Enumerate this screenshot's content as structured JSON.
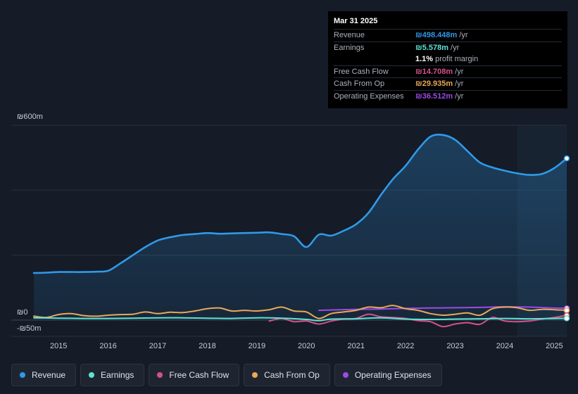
{
  "tooltip": {
    "date": "Mar 31 2025",
    "rows": [
      {
        "label": "Revenue",
        "value": "₪498.448m",
        "unit": "/yr",
        "color": "#2f9ae8"
      },
      {
        "label": "Earnings",
        "value": "₪5.578m",
        "unit": "/yr",
        "color": "#5fe3d3"
      },
      {
        "label": "",
        "value": "1.1%",
        "unit": "profit margin",
        "color": "#ffffff"
      },
      {
        "label": "Free Cash Flow",
        "value": "₪14.708m",
        "unit": "/yr",
        "color": "#d6518a"
      },
      {
        "label": "Cash From Op",
        "value": "₪29.935m",
        "unit": "/yr",
        "color": "#e8a95a"
      },
      {
        "label": "Operating Expenses",
        "value": "₪36.512m",
        "unit": "/yr",
        "color": "#9b4be6"
      }
    ]
  },
  "legend": [
    {
      "label": "Revenue",
      "color": "#2f9ae8"
    },
    {
      "label": "Earnings",
      "color": "#5fe3d3"
    },
    {
      "label": "Free Cash Flow",
      "color": "#d6518a"
    },
    {
      "label": "Cash From Op",
      "color": "#e8a95a"
    },
    {
      "label": "Operating Expenses",
      "color": "#9b4be6"
    }
  ],
  "chart_data": {
    "type": "line",
    "title": "",
    "xlabel": "",
    "ylabel": "",
    "xlim": [
      2014.5,
      2025.25
    ],
    "ylim": [
      -50,
      600
    ],
    "y_tick_labels": [
      {
        "value": 600,
        "label": "₪600m"
      },
      {
        "value": 0,
        "label": "₪0"
      },
      {
        "value": -50,
        "label": "-₪50m"
      }
    ],
    "x_ticks": [
      {
        "value": 2015,
        "label": "2015"
      },
      {
        "value": 2016,
        "label": "2016"
      },
      {
        "value": 2017,
        "label": "2017"
      },
      {
        "value": 2018,
        "label": "2018"
      },
      {
        "value": 2019,
        "label": "2019"
      },
      {
        "value": 2020,
        "label": "2020"
      },
      {
        "value": 2021,
        "label": "2021"
      },
      {
        "value": 2022,
        "label": "2022"
      },
      {
        "value": 2023,
        "label": "2023"
      },
      {
        "value": 2024,
        "label": "2024"
      },
      {
        "value": 2025,
        "label": "2025"
      }
    ],
    "highlight_from": 2024.25,
    "series": [
      {
        "name": "Revenue",
        "color": "#2f9ae8",
        "fill": true,
        "points": [
          [
            2014.5,
            145
          ],
          [
            2014.75,
            146
          ],
          [
            2015,
            148
          ],
          [
            2015.25,
            148
          ],
          [
            2015.5,
            148
          ],
          [
            2015.75,
            149
          ],
          [
            2016,
            152
          ],
          [
            2016.25,
            175
          ],
          [
            2016.5,
            200
          ],
          [
            2016.75,
            225
          ],
          [
            2017,
            245
          ],
          [
            2017.25,
            255
          ],
          [
            2017.5,
            262
          ],
          [
            2017.75,
            265
          ],
          [
            2018,
            268
          ],
          [
            2018.25,
            266
          ],
          [
            2018.5,
            267
          ],
          [
            2018.75,
            268
          ],
          [
            2019,
            269
          ],
          [
            2019.25,
            270
          ],
          [
            2019.5,
            265
          ],
          [
            2019.75,
            258
          ],
          [
            2020,
            225
          ],
          [
            2020.25,
            263
          ],
          [
            2020.5,
            260
          ],
          [
            2020.75,
            275
          ],
          [
            2021,
            295
          ],
          [
            2021.25,
            330
          ],
          [
            2021.5,
            385
          ],
          [
            2021.75,
            435
          ],
          [
            2022,
            475
          ],
          [
            2022.25,
            525
          ],
          [
            2022.5,
            565
          ],
          [
            2022.75,
            570
          ],
          [
            2023,
            555
          ],
          [
            2023.25,
            520
          ],
          [
            2023.5,
            485
          ],
          [
            2023.75,
            470
          ],
          [
            2024,
            460
          ],
          [
            2024.25,
            452
          ],
          [
            2024.5,
            447
          ],
          [
            2024.75,
            450
          ],
          [
            2025,
            468
          ],
          [
            2025.25,
            498
          ]
        ]
      },
      {
        "name": "Earnings",
        "color": "#5fe3d3",
        "fill": false,
        "points": [
          [
            2014.5,
            7
          ],
          [
            2015,
            6
          ],
          [
            2015.5,
            5
          ],
          [
            2016,
            5
          ],
          [
            2016.5,
            6
          ],
          [
            2017,
            7
          ],
          [
            2017.5,
            7
          ],
          [
            2018,
            6
          ],
          [
            2018.5,
            5
          ],
          [
            2019,
            7
          ],
          [
            2019.5,
            6
          ],
          [
            2020,
            2
          ],
          [
            2020.25,
            -2
          ],
          [
            2020.5,
            3
          ],
          [
            2021,
            4
          ],
          [
            2021.5,
            7
          ],
          [
            2022,
            3
          ],
          [
            2022.5,
            2
          ],
          [
            2023,
            3
          ],
          [
            2023.5,
            4
          ],
          [
            2024,
            5
          ],
          [
            2024.5,
            4
          ],
          [
            2025,
            5
          ],
          [
            2025.25,
            5.5
          ]
        ]
      },
      {
        "name": "Free Cash Flow",
        "color": "#d6518a",
        "fill": false,
        "points": [
          [
            2019.25,
            -3
          ],
          [
            2019.5,
            5
          ],
          [
            2019.75,
            -5
          ],
          [
            2020,
            -3
          ],
          [
            2020.25,
            -12
          ],
          [
            2020.5,
            -3
          ],
          [
            2020.75,
            3
          ],
          [
            2021,
            5
          ],
          [
            2021.25,
            18
          ],
          [
            2021.5,
            10
          ],
          [
            2021.75,
            8
          ],
          [
            2022,
            5
          ],
          [
            2022.25,
            -2
          ],
          [
            2022.5,
            -5
          ],
          [
            2022.75,
            -20
          ],
          [
            2023,
            -12
          ],
          [
            2023.25,
            -8
          ],
          [
            2023.5,
            -13
          ],
          [
            2023.75,
            8
          ],
          [
            2024,
            -3
          ],
          [
            2024.25,
            -5
          ],
          [
            2024.5,
            -3
          ],
          [
            2024.75,
            3
          ],
          [
            2025,
            8
          ],
          [
            2025.25,
            14.7
          ]
        ]
      },
      {
        "name": "Cash From Op",
        "color": "#e8a95a",
        "fill": false,
        "points": [
          [
            2014.5,
            12
          ],
          [
            2014.75,
            8
          ],
          [
            2015,
            17
          ],
          [
            2015.25,
            20
          ],
          [
            2015.5,
            14
          ],
          [
            2015.75,
            12
          ],
          [
            2016,
            15
          ],
          [
            2016.25,
            17
          ],
          [
            2016.5,
            18
          ],
          [
            2016.75,
            25
          ],
          [
            2017,
            20
          ],
          [
            2017.25,
            24
          ],
          [
            2017.5,
            23
          ],
          [
            2017.75,
            28
          ],
          [
            2018,
            35
          ],
          [
            2018.25,
            37
          ],
          [
            2018.5,
            28
          ],
          [
            2018.75,
            30
          ],
          [
            2019,
            28
          ],
          [
            2019.25,
            32
          ],
          [
            2019.5,
            40
          ],
          [
            2019.75,
            28
          ],
          [
            2020,
            25
          ],
          [
            2020.25,
            5
          ],
          [
            2020.5,
            20
          ],
          [
            2020.75,
            25
          ],
          [
            2021,
            30
          ],
          [
            2021.25,
            40
          ],
          [
            2021.5,
            38
          ],
          [
            2021.75,
            45
          ],
          [
            2022,
            35
          ],
          [
            2022.25,
            30
          ],
          [
            2022.5,
            20
          ],
          [
            2022.75,
            15
          ],
          [
            2023,
            18
          ],
          [
            2023.25,
            22
          ],
          [
            2023.5,
            15
          ],
          [
            2023.75,
            35
          ],
          [
            2024,
            40
          ],
          [
            2024.25,
            38
          ],
          [
            2024.5,
            30
          ],
          [
            2024.75,
            33
          ],
          [
            2025,
            32
          ],
          [
            2025.25,
            29.9
          ]
        ]
      },
      {
        "name": "Operating Expenses",
        "color": "#9b4be6",
        "fill": false,
        "points": [
          [
            2020.25,
            30
          ],
          [
            2020.5,
            31
          ],
          [
            2021,
            33
          ],
          [
            2021.5,
            34
          ],
          [
            2022,
            36
          ],
          [
            2022.5,
            37
          ],
          [
            2023,
            38
          ],
          [
            2023.5,
            39
          ],
          [
            2024,
            41
          ],
          [
            2024.5,
            40
          ],
          [
            2025,
            37
          ],
          [
            2025.25,
            36.5
          ]
        ]
      }
    ]
  }
}
